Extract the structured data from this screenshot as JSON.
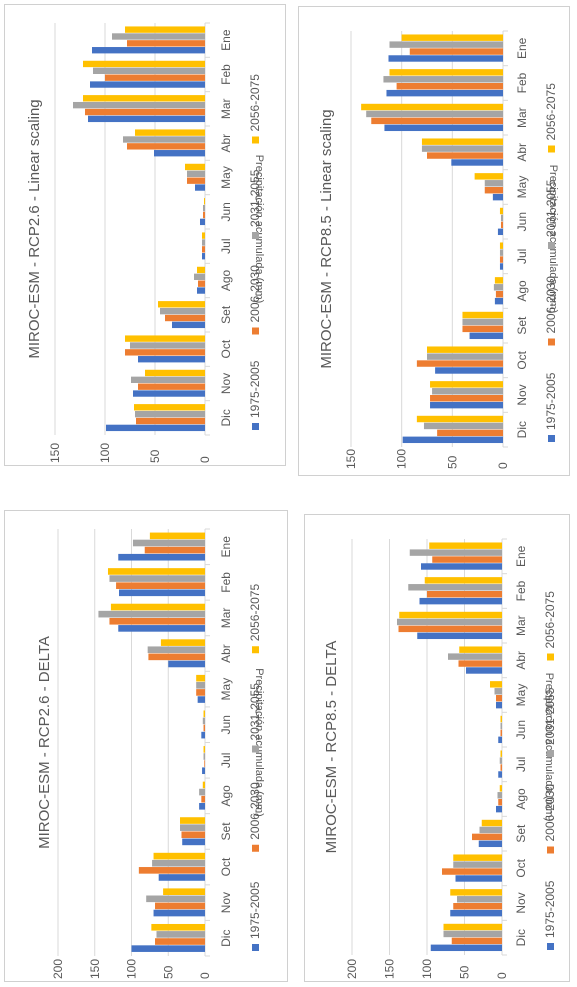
{
  "colors": {
    "s1975": "#4472c4",
    "s2006": "#ed7d31",
    "s2031": "#a5a5a5",
    "s2056": "#ffc000",
    "grid": "#d9d9d9",
    "text": "#595959"
  },
  "chart_data": [
    {
      "type": "bar",
      "title": "MIROC-ESM - RCP2.6 - DELTA",
      "ylabel": "Precipitación acumulada (mm)",
      "categories": [
        "Ene",
        "Feb",
        "Mar",
        "Abr",
        "May",
        "Jun",
        "Jul",
        "Ago",
        "Set",
        "Oct",
        "Nov",
        "Dic"
      ],
      "ylim": [
        0,
        200
      ],
      "yticks": [
        "0",
        "50",
        "100",
        "150",
        "200"
      ],
      "series": [
        {
          "name": "1975-2005",
          "values": [
            118,
            117,
            118,
            50,
            10,
            5,
            4,
            8,
            31,
            63,
            70,
            100
          ]
        },
        {
          "name": "2006-2030",
          "values": [
            82,
            121,
            130,
            77,
            12,
            2,
            1,
            5,
            32,
            90,
            68,
            68
          ]
        },
        {
          "name": "2031-2055",
          "values": [
            98,
            130,
            145,
            78,
            12,
            3,
            2,
            8,
            34,
            72,
            80,
            66
          ]
        },
        {
          "name": "2056-2075",
          "values": [
            75,
            132,
            128,
            60,
            12,
            2,
            2,
            3,
            34,
            70,
            57,
            73
          ]
        }
      ]
    },
    {
      "type": "bar",
      "title": "MIROC-ESM - RCP2.6 - Linear scaling",
      "ylabel": "Precipitación acumulada (mm)",
      "categories": [
        "Ene",
        "Feb",
        "Mar",
        "Abr",
        "May",
        "Jun",
        "Jul",
        "Ago",
        "Set",
        "Oct",
        "Nov",
        "Dic"
      ],
      "ylim": [
        0,
        150
      ],
      "yticks": [
        "0",
        "50",
        "100",
        "150"
      ],
      "series": [
        {
          "name": "1975-2005",
          "values": [
            113,
            115,
            117,
            51,
            10,
            5,
            3,
            8,
            33,
            67,
            72,
            99
          ]
        },
        {
          "name": "2006-2030",
          "values": [
            78,
            100,
            120,
            78,
            18,
            2,
            3,
            7,
            40,
            80,
            67,
            69
          ]
        },
        {
          "name": "2031-2055",
          "values": [
            93,
            112,
            132,
            82,
            18,
            2,
            3,
            11,
            45,
            75,
            74,
            70
          ]
        },
        {
          "name": "2056-2075",
          "values": [
            80,
            122,
            122,
            70,
            20,
            1,
            3,
            8,
            47,
            80,
            60,
            71
          ]
        }
      ]
    },
    {
      "type": "bar",
      "title": "MIROC-ESM - RCP8.5 - DELTA",
      "ylabel": "Precipitación acumulada (mm)",
      "categories": [
        "Ene",
        "Feb",
        "Mar",
        "Abr",
        "May",
        "Jun",
        "Jul",
        "Ago",
        "Set",
        "Oct",
        "Nov",
        "Dic"
      ],
      "ylim": [
        0,
        200
      ],
      "yticks": [
        "0",
        "50",
        "100",
        "150",
        "200"
      ],
      "series": [
        {
          "name": "1975-2005",
          "values": [
            108,
            110,
            113,
            48,
            8,
            5,
            5,
            8,
            31,
            62,
            69,
            95
          ]
        },
        {
          "name": "2006-2030",
          "values": [
            93,
            100,
            138,
            58,
            8,
            2,
            2,
            5,
            40,
            80,
            65,
            67
          ]
        },
        {
          "name": "2031-2055",
          "values": [
            123,
            125,
            140,
            72,
            10,
            2,
            3,
            6,
            30,
            65,
            60,
            78
          ]
        },
        {
          "name": "2056-2075",
          "values": [
            97,
            103,
            137,
            57,
            16,
            2,
            2,
            3,
            27,
            65,
            69,
            78
          ]
        }
      ]
    },
    {
      "type": "bar",
      "title": "MIROC-ESM - RCP8.5 - Linear scaling",
      "ylabel": "Precipitación acumulada (mm)",
      "categories": [
        "Ene",
        "Feb",
        "Mar",
        "Abr",
        "May",
        "Jun",
        "Jul",
        "Ago",
        "Set",
        "Oct",
        "Nov",
        "Dic"
      ],
      "ylim": [
        0,
        150
      ],
      "yticks": [
        "0",
        "50",
        "100",
        "150"
      ],
      "series": [
        {
          "name": "1975-2005",
          "values": [
            113,
            115,
            117,
            51,
            10,
            5,
            3,
            8,
            33,
            67,
            72,
            99
          ]
        },
        {
          "name": "2006-2030",
          "values": [
            92,
            105,
            130,
            75,
            18,
            2,
            3,
            7,
            40,
            85,
            72,
            65
          ]
        },
        {
          "name": "2031-2055",
          "values": [
            112,
            118,
            135,
            80,
            18,
            2,
            3,
            9,
            40,
            75,
            70,
            78
          ]
        },
        {
          "name": "2056-2075",
          "values": [
            100,
            112,
            140,
            80,
            28,
            3,
            3,
            8,
            40,
            75,
            72,
            85
          ]
        }
      ]
    }
  ]
}
